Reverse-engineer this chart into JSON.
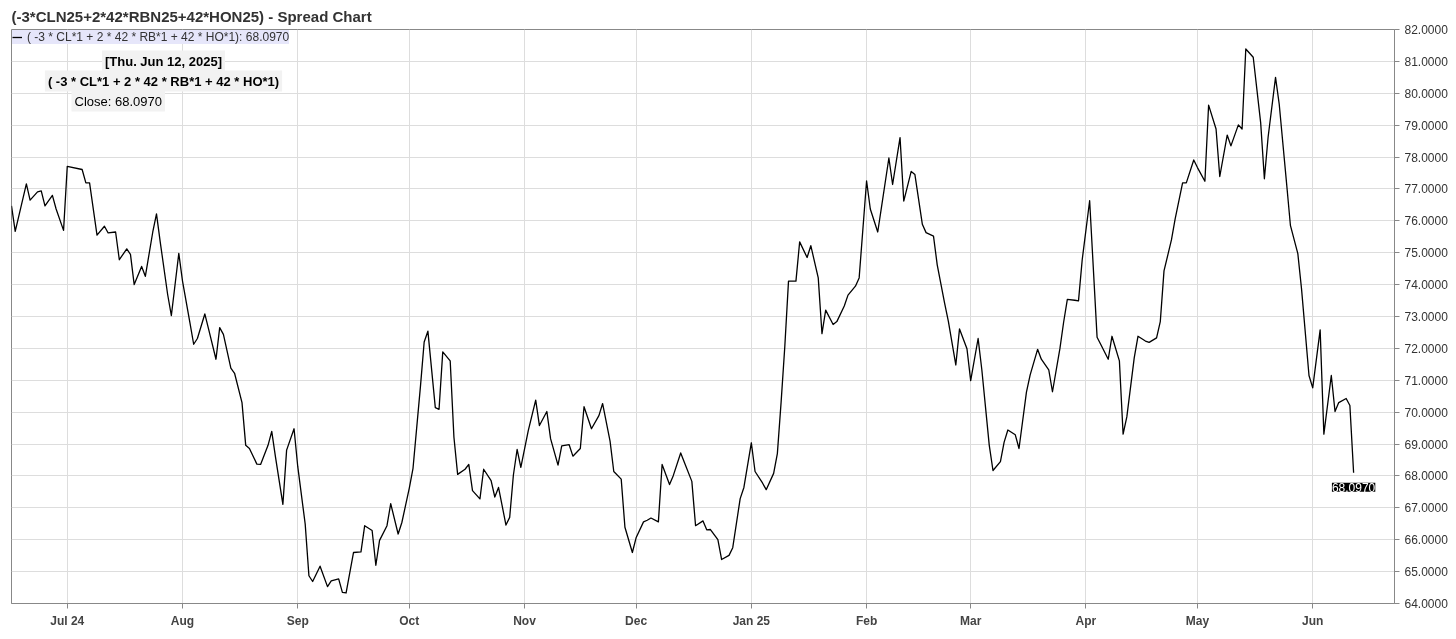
{
  "chart_data": {
    "type": "line",
    "title": "(-3*CLN25+2*42*RBN25+42*HON25) - Spread Chart",
    "xlim": [
      "2024-06-16",
      "2025-06-23"
    ],
    "xticks": [
      {
        "value": "2024-07-01",
        "label": "Jul 24"
      },
      {
        "value": "2024-08-01",
        "label": "Aug"
      },
      {
        "value": "2024-09-01",
        "label": "Sep"
      },
      {
        "value": "2024-10-01",
        "label": "Oct"
      },
      {
        "value": "2024-11-01",
        "label": "Nov"
      },
      {
        "value": "2024-12-01",
        "label": "Dec"
      },
      {
        "value": "2025-01-01",
        "label": "Jan 25"
      },
      {
        "value": "2025-02-01",
        "label": "Feb"
      },
      {
        "value": "2025-03-01",
        "label": "Mar"
      },
      {
        "value": "2025-04-01",
        "label": "Apr"
      },
      {
        "value": "2025-05-01",
        "label": "May"
      },
      {
        "value": "2025-06-01",
        "label": "Jun"
      }
    ],
    "ylim": [
      64,
      82
    ],
    "yticks": [
      {
        "value": 64,
        "label": "64.0000"
      },
      {
        "value": 65,
        "label": "65.0000"
      },
      {
        "value": 66,
        "label": "66.0000"
      },
      {
        "value": 67,
        "label": "67.0000"
      },
      {
        "value": 68,
        "label": "68.0000"
      },
      {
        "value": 69,
        "label": "69.0000"
      },
      {
        "value": 70,
        "label": "70.0000"
      },
      {
        "value": 71,
        "label": "71.0000"
      },
      {
        "value": 72,
        "label": "72.0000"
      },
      {
        "value": 73,
        "label": "73.0000"
      },
      {
        "value": 74,
        "label": "74.0000"
      },
      {
        "value": 75,
        "label": "75.0000"
      },
      {
        "value": 76,
        "label": "76.0000"
      },
      {
        "value": 77,
        "label": "77.0000"
      },
      {
        "value": 78,
        "label": "78.0000"
      },
      {
        "value": 79,
        "label": "79.0000"
      },
      {
        "value": 80,
        "label": "80.0000"
      },
      {
        "value": 81,
        "label": "81.0000"
      },
      {
        "value": 82,
        "label": "82.0000"
      }
    ],
    "grid": true,
    "legend": "top left",
    "annotations": [
      "[Thu. Jun 12, 2025]",
      "( -3 * CL*1 + 2 * 42 * RB*1 + 42 * HO*1)",
      "Close: 68.0970",
      {
        "text": "68.0970",
        "x": "2025-06-12",
        "y": 68.1
      }
    ],
    "series": [
      {
        "name": "( -3 * CL*1 + 2 * 42 * RB*1 + 42 * HO*1): 68.0970",
        "color": "#000000",
        "x": [
          "2024-06-16",
          "2024-06-17",
          "2024-06-20",
          "2024-06-21",
          "2024-06-23",
          "2024-06-24",
          "2024-06-25",
          "2024-06-27",
          "2024-06-28",
          "2024-06-30",
          "2024-07-01",
          "2024-07-05",
          "2024-07-06",
          "2024-07-07",
          "2024-07-09",
          "2024-07-11",
          "2024-07-12",
          "2024-07-14",
          "2024-07-15",
          "2024-07-17",
          "2024-07-18",
          "2024-07-19",
          "2024-07-21",
          "2024-07-22",
          "2024-07-24",
          "2024-07-25",
          "2024-07-26",
          "2024-07-28",
          "2024-07-29",
          "2024-07-31",
          "2024-08-01",
          "2024-08-03",
          "2024-08-04",
          "2024-08-05",
          "2024-08-07",
          "2024-08-08",
          "2024-08-10",
          "2024-08-11",
          "2024-08-12",
          "2024-08-14",
          "2024-08-15",
          "2024-08-17",
          "2024-08-18",
          "2024-08-19",
          "2024-08-21",
          "2024-08-22",
          "2024-08-24",
          "2024-08-25",
          "2024-08-26",
          "2024-08-28",
          "2024-08-29",
          "2024-08-31",
          "2024-09-01",
          "2024-09-03",
          "2024-09-04",
          "2024-09-05",
          "2024-09-07",
          "2024-09-09",
          "2024-09-10",
          "2024-09-12",
          "2024-09-13",
          "2024-09-14",
          "2024-09-16",
          "2024-09-18",
          "2024-09-19",
          "2024-09-21",
          "2024-09-22",
          "2024-09-23",
          "2024-09-25",
          "2024-09-26",
          "2024-09-28",
          "2024-09-29",
          "2024-10-01",
          "2024-10-02",
          "2024-10-04",
          "2024-10-05",
          "2024-10-06",
          "2024-10-08",
          "2024-10-09",
          "2024-10-10",
          "2024-10-12",
          "2024-10-13",
          "2024-10-14",
          "2024-10-16",
          "2024-10-17",
          "2024-10-18",
          "2024-10-20",
          "2024-10-21",
          "2024-10-23",
          "2024-10-24",
          "2024-10-25",
          "2024-10-27",
          "2024-10-28",
          "2024-10-29",
          "2024-10-30",
          "2024-10-31",
          "2024-11-02",
          "2024-11-04",
          "2024-11-05",
          "2024-11-07",
          "2024-11-08",
          "2024-11-10",
          "2024-11-11",
          "2024-11-13",
          "2024-11-14",
          "2024-11-16",
          "2024-11-17",
          "2024-11-19",
          "2024-11-21",
          "2024-11-22",
          "2024-11-24",
          "2024-11-25",
          "2024-11-27",
          "2024-11-28",
          "2024-11-30",
          "2024-12-01",
          "2024-12-03",
          "2024-12-04",
          "2024-12-05",
          "2024-12-07",
          "2024-12-08",
          "2024-12-10",
          "2024-12-11",
          "2024-12-13",
          "2024-12-14",
          "2024-12-16",
          "2024-12-17",
          "2024-12-19",
          "2024-12-20",
          "2024-12-21",
          "2024-12-23",
          "2024-12-24",
          "2024-12-26",
          "2024-12-27",
          "2024-12-29",
          "2024-12-30",
          "2025-01-01",
          "2025-01-02",
          "2025-01-04",
          "2025-01-05",
          "2025-01-07",
          "2025-01-08",
          "2025-01-09",
          "2025-01-10",
          "2025-01-11",
          "2025-01-13",
          "2025-01-14",
          "2025-01-16",
          "2025-01-17",
          "2025-01-19",
          "2025-01-20",
          "2025-01-21",
          "2025-01-23",
          "2025-01-24",
          "2025-01-26",
          "2025-01-27",
          "2025-01-29",
          "2025-01-30",
          "2025-02-01",
          "2025-02-02",
          "2025-02-04",
          "2025-02-05",
          "2025-02-07",
          "2025-02-08",
          "2025-02-10",
          "2025-02-11",
          "2025-02-13",
          "2025-02-14",
          "2025-02-16",
          "2025-02-17",
          "2025-02-19",
          "2025-02-20",
          "2025-02-22",
          "2025-02-23",
          "2025-02-25",
          "2025-02-26",
          "2025-02-28",
          "2025-03-01",
          "2025-03-03",
          "2025-03-04",
          "2025-03-06",
          "2025-03-07",
          "2025-03-09",
          "2025-03-10",
          "2025-03-11",
          "2025-03-13",
          "2025-03-14",
          "2025-03-16",
          "2025-03-17",
          "2025-03-19",
          "2025-03-20",
          "2025-03-22",
          "2025-03-23",
          "2025-03-25",
          "2025-03-26",
          "2025-03-27",
          "2025-03-29",
          "2025-03-30",
          "2025-03-31",
          "2025-04-02",
          "2025-04-04",
          "2025-04-05",
          "2025-04-07",
          "2025-04-08",
          "2025-04-10",
          "2025-04-11",
          "2025-04-12",
          "2025-04-14",
          "2025-04-15",
          "2025-04-17",
          "2025-04-18",
          "2025-04-20",
          "2025-04-21",
          "2025-04-22",
          "2025-04-24",
          "2025-04-25",
          "2025-04-27",
          "2025-04-28",
          "2025-04-30",
          "2025-05-01",
          "2025-05-03",
          "2025-05-04",
          "2025-05-06",
          "2025-05-07",
          "2025-05-09",
          "2025-05-10",
          "2025-05-12",
          "2025-05-13",
          "2025-05-14",
          "2025-05-16",
          "2025-05-18",
          "2025-05-19",
          "2025-05-20",
          "2025-05-22",
          "2025-05-23",
          "2025-05-25",
          "2025-05-26",
          "2025-05-28",
          "2025-05-29",
          "2025-05-31",
          "2025-06-01",
          "2025-06-03",
          "2025-06-04",
          "2025-06-06",
          "2025-06-07",
          "2025-06-08",
          "2025-06-10",
          "2025-06-11",
          "2025-06-12"
        ],
        "values": [
          76.47,
          75.67,
          77.16,
          76.65,
          76.91,
          76.94,
          76.47,
          76.8,
          76.37,
          75.7,
          77.71,
          77.61,
          77.19,
          77.19,
          75.55,
          75.83,
          75.62,
          75.65,
          74.78,
          75.12,
          74.95,
          74.0,
          74.57,
          74.26,
          75.65,
          76.22,
          75.34,
          73.69,
          73.03,
          74.98,
          74.11,
          72.8,
          72.13,
          72.31,
          73.08,
          72.61,
          71.66,
          72.65,
          72.44,
          71.38,
          71.22,
          70.3,
          68.96,
          68.86,
          68.37,
          68.36,
          68.96,
          69.4,
          68.6,
          67.11,
          68.81,
          69.48,
          68.29,
          66.49,
          64.87,
          64.69,
          65.17,
          64.53,
          64.71,
          64.77,
          64.35,
          64.33,
          65.6,
          65.62,
          66.44,
          66.29,
          65.2,
          65.98,
          66.44,
          67.13,
          66.18,
          66.54,
          67.62,
          68.24,
          70.81,
          72.2,
          72.54,
          70.14,
          70.09,
          71.89,
          71.61,
          69.22,
          68.05,
          68.21,
          68.36,
          67.54,
          67.28,
          68.21,
          67.85,
          67.34,
          67.64,
          66.46,
          66.7,
          68.03,
          68.83,
          68.27,
          69.42,
          70.38,
          69.58,
          70.02,
          69.17,
          68.34,
          68.94,
          68.98,
          68.62,
          68.86,
          70.17,
          69.48,
          69.89,
          70.27,
          69.09,
          68.14,
          67.9,
          66.39,
          65.6,
          66.06,
          66.56,
          66.61,
          66.68,
          66.56,
          68.36,
          67.73,
          68.01,
          68.72,
          68.42,
          67.83,
          66.44,
          66.59,
          66.31,
          66.32,
          66.0,
          65.38,
          65.51,
          65.75,
          67.29,
          67.64,
          69.04,
          68.14,
          67.78,
          67.57,
          68.08,
          68.7,
          70.3,
          72.05,
          74.11,
          74.11,
          75.34,
          74.85,
          75.22,
          74.21,
          72.46,
          73.2,
          72.75,
          72.84,
          73.33,
          73.67,
          73.95,
          74.21,
          77.25,
          76.37,
          75.65,
          76.42,
          77.97,
          77.14,
          78.61,
          76.62,
          77.55,
          77.45,
          75.89,
          75.63,
          75.52,
          74.62,
          73.41,
          72.85,
          71.48,
          72.61,
          71.99,
          70.99,
          72.31,
          71.33,
          68.96,
          68.17,
          68.45,
          69.06,
          69.44,
          69.29,
          68.86,
          70.63,
          71.17,
          71.97,
          71.66,
          71.33,
          70.64,
          71.99,
          72.82,
          73.54,
          73.51,
          73.49,
          74.78,
          76.63,
          72.35,
          72.12,
          71.66,
          72.38,
          71.61,
          69.31,
          69.85,
          71.71,
          72.38,
          72.23,
          72.19,
          72.33,
          72.84,
          74.43,
          75.4,
          76.06,
          77.19,
          77.19,
          77.91,
          77.67,
          77.24,
          79.63,
          78.88,
          77.39,
          78.69,
          78.35,
          79.01,
          78.88,
          81.39,
          81.13,
          79.08,
          77.32,
          78.62,
          80.5,
          79.65,
          77.14,
          75.86,
          74.97,
          73.86,
          71.15,
          70.76,
          72.58,
          69.31,
          71.15,
          70.02,
          70.3,
          70.43,
          70.21,
          68.1
        ]
      }
    ]
  }
}
